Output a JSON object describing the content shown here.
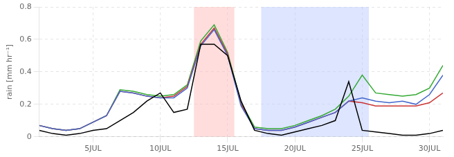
{
  "chart_data": {
    "type": "line",
    "ylabel": "rain [mm hr⁻¹]",
    "x": [
      1,
      2,
      3,
      4,
      5,
      6,
      7,
      8,
      9,
      10,
      11,
      12,
      13,
      14,
      15,
      16,
      17,
      18,
      19,
      20,
      21,
      22,
      23,
      24,
      25,
      26,
      27,
      28,
      29,
      30,
      31
    ],
    "series": [
      {
        "color": "#000000",
        "values": [
          0.04,
          0.02,
          0.01,
          0.02,
          0.04,
          0.05,
          0.1,
          0.15,
          0.22,
          0.27,
          0.15,
          0.17,
          0.57,
          0.57,
          0.5,
          0.22,
          0.04,
          0.02,
          0.01,
          0.03,
          0.05,
          0.07,
          0.1,
          0.34,
          0.04,
          0.03,
          0.02,
          0.01,
          0.01,
          0.02,
          0.04
        ]
      },
      {
        "color": "#4466cc",
        "values": [
          0.07,
          0.05,
          0.04,
          0.05,
          0.09,
          0.13,
          0.28,
          0.27,
          0.25,
          0.24,
          0.24,
          0.3,
          0.56,
          0.66,
          0.5,
          0.19,
          0.05,
          0.04,
          0.04,
          0.06,
          0.09,
          0.12,
          0.15,
          0.22,
          0.24,
          0.22,
          0.21,
          0.22,
          0.2,
          0.26,
          0.38
        ]
      },
      {
        "color": "#cc3333",
        "values": [
          0.07,
          0.05,
          0.04,
          0.05,
          0.09,
          0.13,
          0.28,
          0.27,
          0.25,
          0.24,
          0.25,
          0.31,
          0.57,
          0.67,
          0.51,
          0.2,
          0.05,
          0.04,
          0.04,
          0.06,
          0.09,
          0.12,
          0.15,
          0.22,
          0.21,
          0.19,
          0.19,
          0.19,
          0.19,
          0.21,
          0.27
        ]
      },
      {
        "color": "#33aa33",
        "values": [
          0.07,
          0.05,
          0.04,
          0.05,
          0.09,
          0.13,
          0.29,
          0.28,
          0.26,
          0.25,
          0.26,
          0.32,
          0.59,
          0.69,
          0.52,
          0.21,
          0.06,
          0.05,
          0.05,
          0.07,
          0.1,
          0.13,
          0.17,
          0.25,
          0.38,
          0.27,
          0.26,
          0.25,
          0.26,
          0.3,
          0.44
        ]
      }
    ],
    "xlim": [
      1,
      31
    ],
    "xticks": [
      {
        "value": 5,
        "label": "5JUL"
      },
      {
        "value": 10,
        "label": "10JUL"
      },
      {
        "value": 15,
        "label": "15JUL"
      },
      {
        "value": 20,
        "label": "20JUL"
      },
      {
        "value": 25,
        "label": "25JUL"
      },
      {
        "value": 30,
        "label": "30JUL"
      }
    ],
    "ylim": [
      0,
      0.8
    ],
    "yticks": [
      0,
      0.2,
      0.4,
      0.6,
      0.8
    ],
    "grid": true,
    "shaded_regions": [
      {
        "range": [
          12.5,
          15.5
        ],
        "color": "#ffbbbb"
      },
      {
        "range": [
          17.5,
          25.5
        ],
        "color": "#bbccff"
      }
    ]
  }
}
